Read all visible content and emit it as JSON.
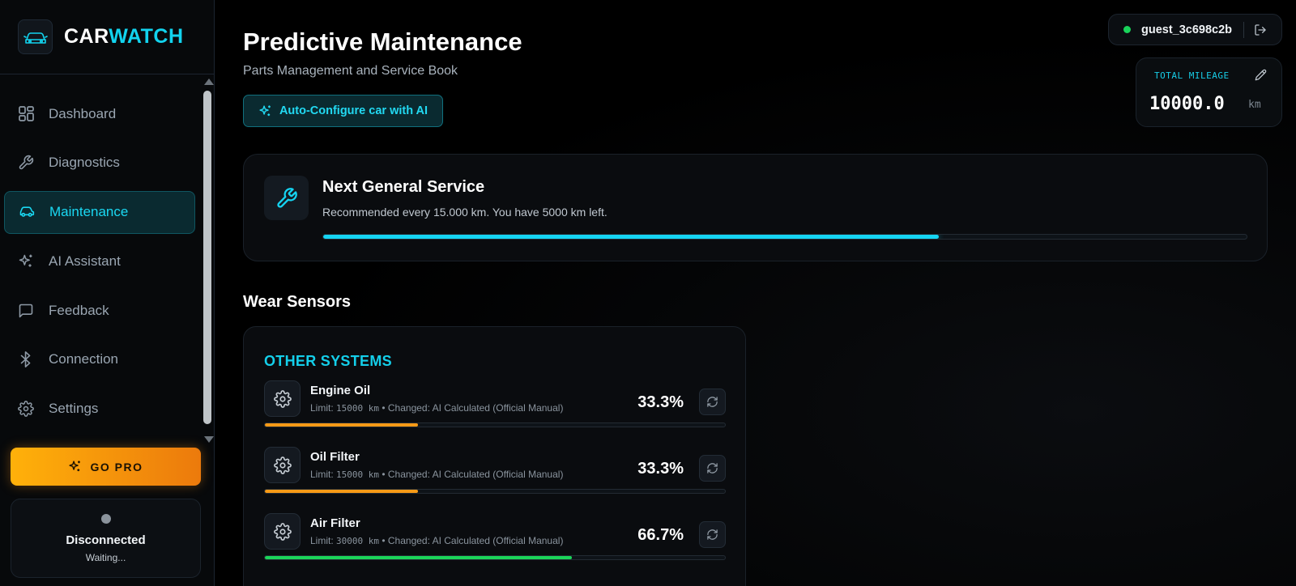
{
  "brand": {
    "name_part1": "CAR",
    "name_part2": "WATCH"
  },
  "sidebar": {
    "items": [
      {
        "label": "Dashboard",
        "icon": "dashboard-icon"
      },
      {
        "label": "Diagnostics",
        "icon": "wrench-icon"
      },
      {
        "label": "Maintenance",
        "icon": "car-icon",
        "active": true
      },
      {
        "label": "AI Assistant",
        "icon": "sparkles-icon"
      },
      {
        "label": "Feedback",
        "icon": "message-icon"
      },
      {
        "label": "Connection",
        "icon": "bluetooth-icon"
      },
      {
        "label": "Settings",
        "icon": "gear-icon"
      }
    ],
    "go_pro_label": "GO PRO",
    "connection": {
      "status": "Disconnected",
      "substatus": "Waiting..."
    }
  },
  "header": {
    "title": "Predictive Maintenance",
    "subtitle": "Parts Management and Service Book",
    "ai_button_label": "Auto-Configure car with AI",
    "user": "guest_3c698c2b"
  },
  "mileage": {
    "label": "TOTAL MILEAGE",
    "value": "10000.0",
    "unit": "km"
  },
  "service": {
    "title": "Next General Service",
    "description": "Recommended every 15.000 km. You have 5000 km left.",
    "progress_percent": 66.7
  },
  "wear_sensors": {
    "title": "Wear Sensors",
    "group_title": "OTHER SYSTEMS",
    "items": [
      {
        "name": "Engine Oil",
        "limit_prefix": "Limit:",
        "limit_value": "15000 km",
        "changed": "• Changed: AI Calculated (Official Manual)",
        "percent_label": "33.3%",
        "percent": 33.3,
        "color": "#f79a16"
      },
      {
        "name": "Oil Filter",
        "limit_prefix": "Limit:",
        "limit_value": "15000 km",
        "changed": "• Changed: AI Calculated (Official Manual)",
        "percent_label": "33.3%",
        "percent": 33.3,
        "color": "#f79a16"
      },
      {
        "name": "Air Filter",
        "limit_prefix": "Limit:",
        "limit_value": "30000 km",
        "changed": "• Changed: AI Calculated (Official Manual)",
        "percent_label": "66.7%",
        "percent": 66.7,
        "color": "#1bd55a"
      }
    ]
  },
  "colors": {
    "accent": "#12d3ee",
    "warning": "#f79a16",
    "ok": "#1bd55a",
    "online": "#19d35a"
  }
}
